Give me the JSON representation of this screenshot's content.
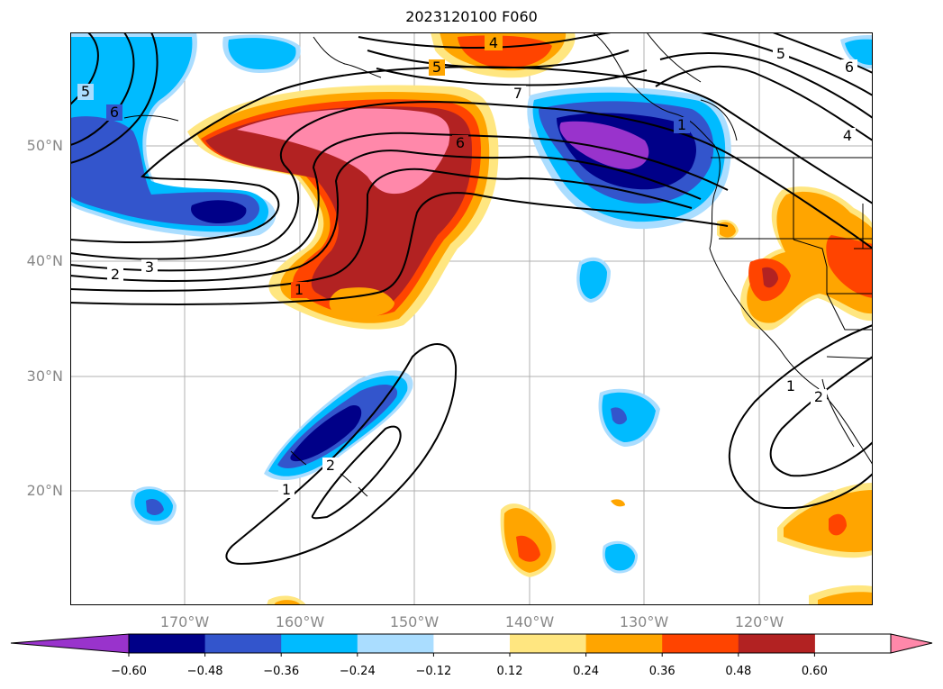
{
  "title": "2023120100 F060",
  "lat_labels": [
    "50°N",
    "40°N",
    "30°N",
    "20°N"
  ],
  "lon_labels": [
    "170°W",
    "160°W",
    "150°W",
    "140°W",
    "130°W",
    "120°W"
  ],
  "contour_labels": [
    "4",
    "5",
    "7",
    "6",
    "5",
    "6",
    "6",
    "5",
    "4",
    "3",
    "2",
    "1",
    "1",
    "2",
    "1",
    "1",
    "2"
  ],
  "colorbar": {
    "ticks": [
      "−0.60",
      "−0.48",
      "−0.36",
      "−0.24",
      "−0.12",
      "0.12",
      "0.24",
      "0.36",
      "0.48",
      "0.60"
    ],
    "colors": [
      "#9933cc",
      "#000088",
      "#3355cc",
      "#00bbff",
      "#aaddff",
      "#ffffff",
      "#ffe680",
      "#ffa500",
      "#ff4400",
      "#b22222",
      "#ff88aa"
    ]
  }
}
